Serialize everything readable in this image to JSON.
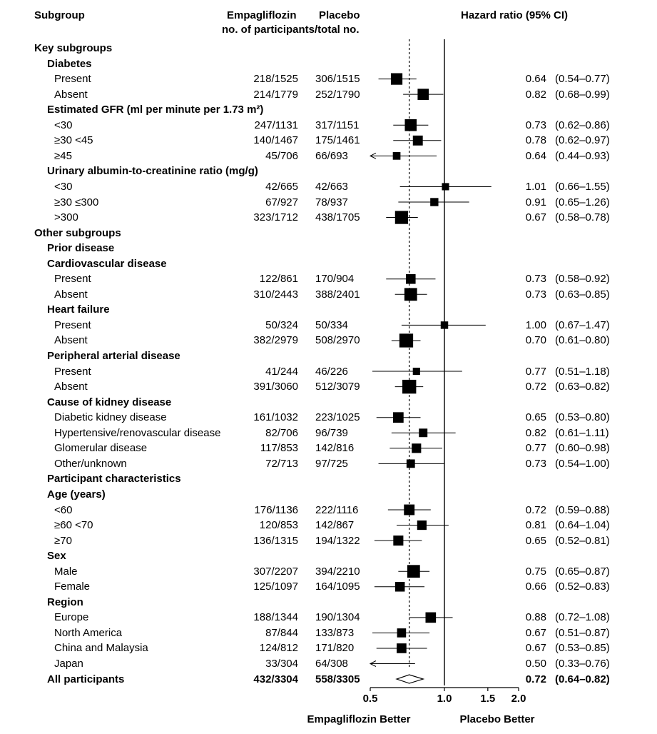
{
  "headers": {
    "subgroup": "Subgroup",
    "empagliflozin": "Empagliflozin",
    "placebo": "Placebo",
    "participants": "no. of participants/total no.",
    "hazard_ratio": "Hazard ratio (95% CI)"
  },
  "chart_data": {
    "type": "forest",
    "xscale": "log",
    "xlim": [
      0.5,
      2.0
    ],
    "reference_line": 1.0,
    "overall_line": 0.72,
    "x_ticks": [
      "0.5",
      "1.0",
      "1.5",
      "2.0"
    ],
    "x_left_label": "Empagliflozin Better",
    "x_right_label": "Placebo Better",
    "rows": [
      {
        "label": "Key subgroups",
        "level": 0,
        "header": true
      },
      {
        "label": "Diabetes",
        "level": 1,
        "header": true
      },
      {
        "label": "Present",
        "level": 2,
        "emp": "218/1525",
        "pla": "306/1515",
        "hr": 0.64,
        "lo": 0.54,
        "hi": 0.77,
        "hr_text": "0.64",
        "ci_text": "(0.54–0.77)",
        "weight": 524
      },
      {
        "label": "Absent",
        "level": 2,
        "emp": "214/1779",
        "pla": "252/1790",
        "hr": 0.82,
        "lo": 0.68,
        "hi": 0.99,
        "hr_text": "0.82",
        "ci_text": "(0.68–0.99)",
        "weight": 466
      },
      {
        "label": "Estimated GFR (ml per minute per 1.73 m²)",
        "level": 1,
        "header": true
      },
      {
        "label": "<30",
        "level": 2,
        "emp": "247/1131",
        "pla": "317/1151",
        "hr": 0.73,
        "lo": 0.62,
        "hi": 0.86,
        "hr_text": "0.73",
        "ci_text": "(0.62–0.86)",
        "weight": 564
      },
      {
        "label": "≥30 <45",
        "level": 2,
        "emp": "140/1467",
        "pla": "175/1461",
        "hr": 0.78,
        "lo": 0.62,
        "hi": 0.97,
        "hr_text": "0.78",
        "ci_text": "(0.62–0.97)",
        "weight": 315
      },
      {
        "label": "≥45",
        "level": 2,
        "emp": "45/706",
        "pla": "66/693",
        "hr": 0.64,
        "lo": 0.44,
        "hi": 0.93,
        "hr_text": "0.64",
        "ci_text": "(0.44–0.93)",
        "weight": 111,
        "arrow_left": true
      },
      {
        "label": "Urinary albumin-to-creatinine ratio (mg/g)",
        "level": 1,
        "header": true
      },
      {
        "label": "<30",
        "level": 2,
        "emp": "42/665",
        "pla": "42/663",
        "hr": 1.01,
        "lo": 0.66,
        "hi": 1.55,
        "hr_text": "1.01",
        "ci_text": "(0.66–1.55)",
        "weight": 84
      },
      {
        "label": "≥30 ≤300",
        "level": 2,
        "emp": "67/927",
        "pla": "78/937",
        "hr": 0.91,
        "lo": 0.65,
        "hi": 1.26,
        "hr_text": "0.91",
        "ci_text": "(0.65–1.26)",
        "weight": 145
      },
      {
        "label": ">300",
        "level": 2,
        "emp": "323/1712",
        "pla": "438/1705",
        "hr": 0.67,
        "lo": 0.58,
        "hi": 0.78,
        "hr_text": "0.67",
        "ci_text": "(0.58–0.78)",
        "weight": 761
      },
      {
        "label": "Other subgroups",
        "level": 0,
        "header": true
      },
      {
        "label": "Prior disease",
        "level": 1,
        "header": true
      },
      {
        "label": "Cardiovascular disease",
        "level": 1,
        "header": true
      },
      {
        "label": "Present",
        "level": 2,
        "emp": "122/861",
        "pla": "170/904",
        "hr": 0.73,
        "lo": 0.58,
        "hi": 0.92,
        "hr_text": "0.73",
        "ci_text": "(0.58–0.92)",
        "weight": 292
      },
      {
        "label": "Absent",
        "level": 2,
        "emp": "310/2443",
        "pla": "388/2401",
        "hr": 0.73,
        "lo": 0.63,
        "hi": 0.85,
        "hr_text": "0.73",
        "ci_text": "(0.63–0.85)",
        "weight": 698
      },
      {
        "label": "Heart failure",
        "level": 1,
        "header": true
      },
      {
        "label": "Present",
        "level": 2,
        "emp": "50/324",
        "pla": "50/334",
        "hr": 1.0,
        "lo": 0.67,
        "hi": 1.47,
        "hr_text": "1.00",
        "ci_text": "(0.67–1.47)",
        "weight": 100
      },
      {
        "label": "Absent",
        "level": 2,
        "emp": "382/2979",
        "pla": "508/2970",
        "hr": 0.7,
        "lo": 0.61,
        "hi": 0.8,
        "hr_text": "0.70",
        "ci_text": "(0.61–0.80)",
        "weight": 890
      },
      {
        "label": "Peripheral arterial disease",
        "level": 1,
        "header": true
      },
      {
        "label": "Present",
        "level": 2,
        "emp": "41/244",
        "pla": "46/226",
        "hr": 0.77,
        "lo": 0.51,
        "hi": 1.18,
        "hr_text": "0.77",
        "ci_text": "(0.51–1.18)",
        "weight": 87
      },
      {
        "label": "Absent",
        "level": 2,
        "emp": "391/3060",
        "pla": "512/3079",
        "hr": 0.72,
        "lo": 0.63,
        "hi": 0.82,
        "hr_text": "0.72",
        "ci_text": "(0.63–0.82)",
        "weight": 903
      },
      {
        "label": "Cause of kidney disease",
        "level": 1,
        "header": true
      },
      {
        "label": "Diabetic kidney disease",
        "level": 2,
        "emp": "161/1032",
        "pla": "223/1025",
        "hr": 0.65,
        "lo": 0.53,
        "hi": 0.8,
        "hr_text": "0.65",
        "ci_text": "(0.53–0.80)",
        "weight": 384
      },
      {
        "label": "Hypertensive/renovascular disease",
        "level": 2,
        "emp": "82/706",
        "pla": "96/739",
        "hr": 0.82,
        "lo": 0.61,
        "hi": 1.11,
        "hr_text": "0.82",
        "ci_text": "(0.61–1.11)",
        "weight": 178
      },
      {
        "label": "Glomerular disease",
        "level": 2,
        "emp": "117/853",
        "pla": "142/816",
        "hr": 0.77,
        "lo": 0.6,
        "hi": 0.98,
        "hr_text": "0.77",
        "ci_text": "(0.60–0.98)",
        "weight": 259
      },
      {
        "label": "Other/unknown",
        "level": 2,
        "emp": "72/713",
        "pla": "97/725",
        "hr": 0.73,
        "lo": 0.54,
        "hi": 1.0,
        "hr_text": "0.73",
        "ci_text": "(0.54–1.00)",
        "weight": 169
      },
      {
        "label": "Participant characteristics",
        "level": 1,
        "header": true
      },
      {
        "label": "Age (years)",
        "level": 1,
        "header": true
      },
      {
        "label": "<60",
        "level": 2,
        "emp": "176/1136",
        "pla": "222/1116",
        "hr": 0.72,
        "lo": 0.59,
        "hi": 0.88,
        "hr_text": "0.72",
        "ci_text": "(0.59–0.88)",
        "weight": 398
      },
      {
        "label": "≥60 <70",
        "level": 2,
        "emp": "120/853",
        "pla": "142/867",
        "hr": 0.81,
        "lo": 0.64,
        "hi": 1.04,
        "hr_text": "0.81",
        "ci_text": "(0.64–1.04)",
        "weight": 262
      },
      {
        "label": "≥70",
        "level": 2,
        "emp": "136/1315",
        "pla": "194/1322",
        "hr": 0.65,
        "lo": 0.52,
        "hi": 0.81,
        "hr_text": "0.65",
        "ci_text": "(0.52–0.81)",
        "weight": 330
      },
      {
        "label": "Sex",
        "level": 1,
        "header": true
      },
      {
        "label": "Male",
        "level": 2,
        "emp": "307/2207",
        "pla": "394/2210",
        "hr": 0.75,
        "lo": 0.65,
        "hi": 0.87,
        "hr_text": "0.75",
        "ci_text": "(0.65–0.87)",
        "weight": 701
      },
      {
        "label": "Female",
        "level": 2,
        "emp": "125/1097",
        "pla": "164/1095",
        "hr": 0.66,
        "lo": 0.52,
        "hi": 0.83,
        "hr_text": "0.66",
        "ci_text": "(0.52–0.83)",
        "weight": 289
      },
      {
        "label": "Region",
        "level": 1,
        "header": true
      },
      {
        "label": "Europe",
        "level": 2,
        "emp": "188/1344",
        "pla": "190/1304",
        "hr": 0.88,
        "lo": 0.72,
        "hi": 1.08,
        "hr_text": "0.88",
        "ci_text": "(0.72–1.08)",
        "weight": 378
      },
      {
        "label": "North America",
        "level": 2,
        "emp": "87/844",
        "pla": "133/873",
        "hr": 0.67,
        "lo": 0.51,
        "hi": 0.87,
        "hr_text": "0.67",
        "ci_text": "(0.51–0.87)",
        "weight": 220
      },
      {
        "label": "China and Malaysia",
        "level": 2,
        "emp": "124/812",
        "pla": "171/820",
        "hr": 0.67,
        "lo": 0.53,
        "hi": 0.85,
        "hr_text": "0.67",
        "ci_text": "(0.53–0.85)",
        "weight": 295
      },
      {
        "label": "Japan",
        "level": 2,
        "emp": "33/304",
        "pla": "64/308",
        "hr": 0.5,
        "lo": 0.33,
        "hi": 0.76,
        "hr_text": "0.50",
        "ci_text": "(0.33–0.76)",
        "weight": 97,
        "arrow_left": true,
        "no_box": true
      },
      {
        "label": "All participants",
        "level": 1,
        "total": true,
        "emp": "432/3304",
        "pla": "558/3305",
        "hr": 0.72,
        "lo": 0.64,
        "hi": 0.82,
        "hr_text": "0.72",
        "ci_text": "(0.64–0.82)",
        "weight": 990,
        "diamond": true
      }
    ]
  }
}
